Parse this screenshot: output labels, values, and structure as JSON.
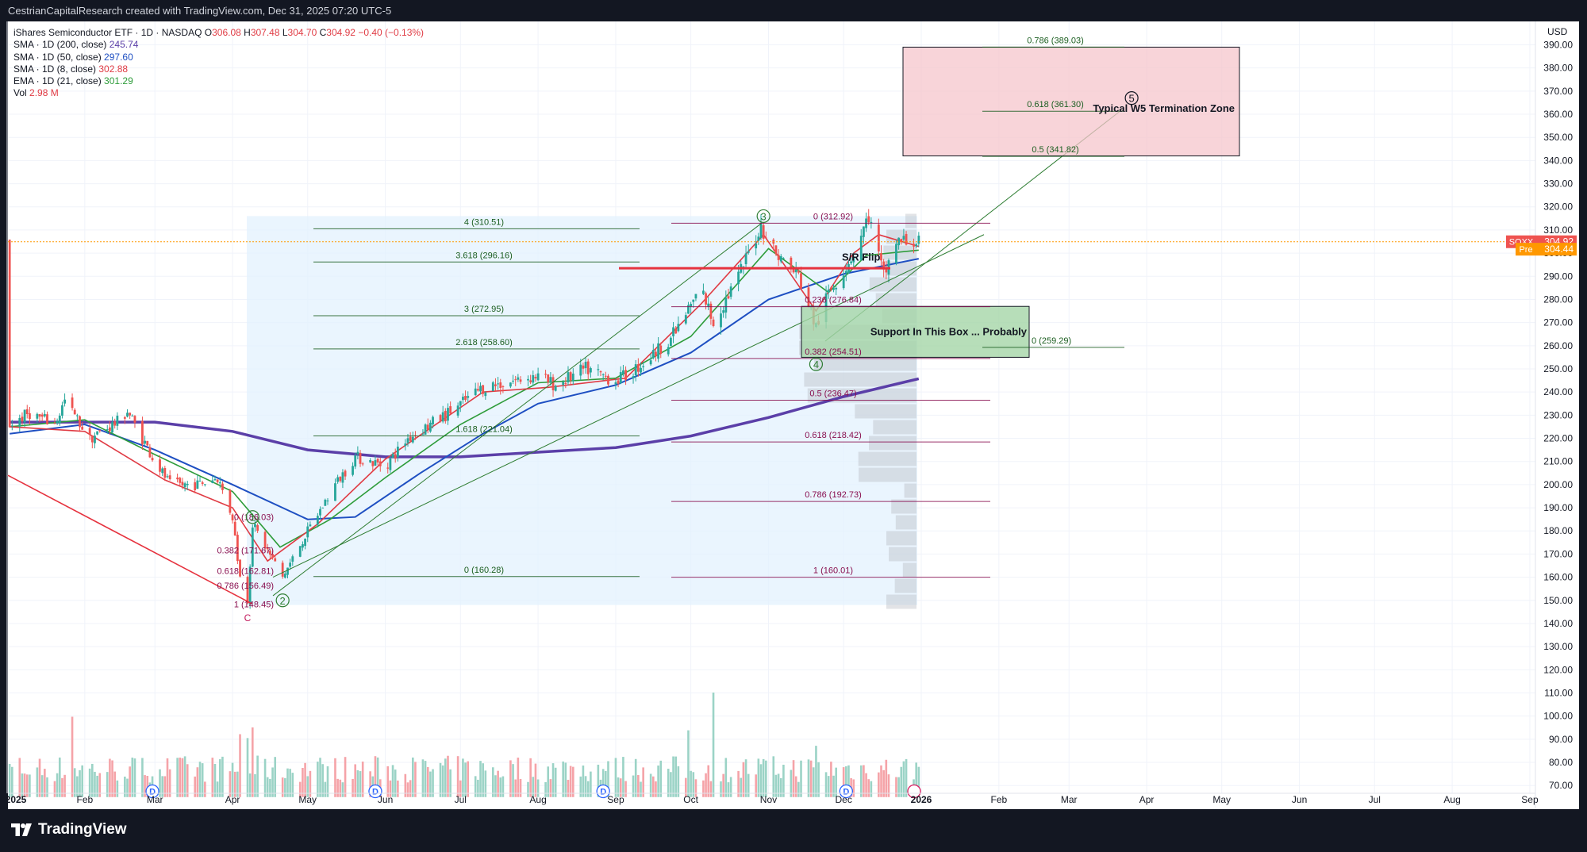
{
  "header": {
    "attribution": "CestrianCapitalResearch created with TradingView.com, Dec 31, 2025 07:20 UTC-5"
  },
  "legend": {
    "title": "iShares Semiconductor ETF · 1D · NASDAQ",
    "ohlc": [
      {
        "key": "O",
        "value": "306.08"
      },
      {
        "key": "H",
        "value": "307.48"
      },
      {
        "key": "L",
        "value": "304.70"
      },
      {
        "key": "C",
        "value": "304.92"
      }
    ],
    "change": "−0.40 (−0.13%)",
    "indicators": [
      {
        "label": "SMA · 1D (200, close)",
        "value": "245.74",
        "color": "#5b3fa8"
      },
      {
        "label": "SMA · 1D (50, close)",
        "value": "297.60",
        "color": "#1e4fc2"
      },
      {
        "label": "SMA · 1D (8, close)",
        "value": "302.88",
        "color": "#e03b44"
      },
      {
        "label": "EMA · 1D (21, close)",
        "value": "301.29",
        "color": "#2e9c3a"
      },
      {
        "label": "Vol",
        "value": "2.98 M",
        "color": "#e03b44"
      }
    ]
  },
  "brand": {
    "name": "TradingView"
  },
  "chart_data": {
    "type": "candlestick",
    "symbol": "SOXX",
    "currency": "USD",
    "last_price": 304.92,
    "premarket_price": 304.44,
    "price_tag_label": "SOXX",
    "premarket_tag_label": "Pre",
    "y_range": [
      65,
      399
    ],
    "y_ticks": [
      70,
      80,
      90,
      100,
      110,
      120,
      130,
      140,
      150,
      160,
      170,
      180,
      190,
      200,
      210,
      220,
      230,
      240,
      250,
      260,
      270,
      280,
      290,
      300,
      310,
      320,
      330,
      340,
      350,
      360,
      370,
      380,
      390
    ],
    "x_ticks": [
      "2025",
      "Feb",
      "Mar",
      "Apr",
      "May",
      "Jun",
      "Jul",
      "Aug",
      "Sep",
      "Oct",
      "Nov",
      "Dec",
      "2026",
      "Feb",
      "Mar",
      "Apr",
      "May",
      "Jun",
      "Jul",
      "Aug",
      "Sep"
    ],
    "price_path": [
      [
        "2025-01-02",
        226
      ],
      [
        "2025-01-10",
        231
      ],
      [
        "2025-01-20",
        226
      ],
      [
        "2025-01-24",
        236
      ],
      [
        "2025-02-03",
        220
      ],
      [
        "2025-02-14",
        227
      ],
      [
        "2025-02-18",
        232
      ],
      [
        "2025-02-28",
        212
      ],
      [
        "2025-03-07",
        200
      ],
      [
        "2025-03-18",
        200
      ],
      [
        "2025-03-26",
        203
      ],
      [
        "2025-04-01",
        186
      ],
      [
        "2025-04-04",
        160
      ],
      [
        "2025-04-07",
        150
      ],
      [
        "2025-04-09",
        183
      ],
      [
        "2025-04-21",
        160
      ],
      [
        "2025-04-30",
        178
      ],
      [
        "2025-05-12",
        200
      ],
      [
        "2025-05-20",
        212
      ],
      [
        "2025-06-01",
        208
      ],
      [
        "2025-06-10",
        220
      ],
      [
        "2025-06-25",
        230
      ],
      [
        "2025-07-10",
        242
      ],
      [
        "2025-07-31",
        247
      ],
      [
        "2025-08-08",
        243
      ],
      [
        "2025-08-20",
        250
      ],
      [
        "2025-09-01",
        245
      ],
      [
        "2025-09-05",
        247
      ],
      [
        "2025-09-15",
        255
      ],
      [
        "2025-09-25",
        266
      ],
      [
        "2025-10-05",
        285
      ],
      [
        "2025-10-10",
        270
      ],
      [
        "2025-10-20",
        290
      ],
      [
        "2025-10-29",
        312
      ],
      [
        "2025-11-04",
        300
      ],
      [
        "2025-11-13",
        290
      ],
      [
        "2025-11-20",
        268
      ],
      [
        "2025-11-25",
        283
      ],
      [
        "2025-12-01",
        293
      ],
      [
        "2025-12-05",
        300
      ],
      [
        "2025-12-11",
        316
      ],
      [
        "2025-12-17",
        290
      ],
      [
        "2025-12-22",
        305
      ],
      [
        "2025-12-31",
        304.92
      ]
    ],
    "series": [
      {
        "name": "SMA · 1D (200, close)",
        "color": "#5b3fa8",
        "points": [
          [
            "2025-01-02",
            227
          ],
          [
            "2025-02-10",
            227
          ],
          [
            "2025-03-01",
            227
          ],
          [
            "2025-04-01",
            223
          ],
          [
            "2025-05-01",
            215
          ],
          [
            "2025-06-01",
            212
          ],
          [
            "2025-07-01",
            212
          ],
          [
            "2025-08-01",
            214
          ],
          [
            "2025-09-01",
            216
          ],
          [
            "2025-10-01",
            221
          ],
          [
            "2025-11-01",
            229
          ],
          [
            "2025-12-01",
            238
          ],
          [
            "2025-12-31",
            245.74
          ]
        ]
      },
      {
        "name": "SMA · 1D (50, close)",
        "color": "#1e4fc2",
        "points": [
          [
            "2025-01-02",
            222
          ],
          [
            "2025-02-01",
            226
          ],
          [
            "2025-03-01",
            215
          ],
          [
            "2025-04-01",
            200
          ],
          [
            "2025-05-01",
            185
          ],
          [
            "2025-05-20",
            186
          ],
          [
            "2025-06-15",
            205
          ],
          [
            "2025-07-10",
            222
          ],
          [
            "2025-08-01",
            235
          ],
          [
            "2025-09-01",
            243
          ],
          [
            "2025-10-01",
            257
          ],
          [
            "2025-11-01",
            280
          ],
          [
            "2025-12-01",
            291
          ],
          [
            "2025-12-31",
            297.6
          ]
        ]
      },
      {
        "name": "EMA · 1D (21, close)",
        "color": "#2e9c3a",
        "points": [
          [
            "2025-01-02",
            225
          ],
          [
            "2025-02-01",
            228
          ],
          [
            "2025-03-01",
            213
          ],
          [
            "2025-04-01",
            197
          ],
          [
            "2025-04-20",
            173
          ],
          [
            "2025-05-10",
            185
          ],
          [
            "2025-06-01",
            203
          ],
          [
            "2025-07-01",
            226
          ],
          [
            "2025-08-01",
            244
          ],
          [
            "2025-09-01",
            246
          ],
          [
            "2025-10-01",
            264
          ],
          [
            "2025-11-01",
            302
          ],
          [
            "2025-11-25",
            283
          ],
          [
            "2025-12-10",
            299
          ],
          [
            "2025-12-31",
            301.29
          ]
        ]
      },
      {
        "name": "SMA · 1D (8, close)",
        "color": "#e03b44",
        "points": [
          [
            "2025-01-02",
            225
          ],
          [
            "2025-02-01",
            223
          ],
          [
            "2025-03-05",
            202
          ],
          [
            "2025-04-01",
            190
          ],
          [
            "2025-04-15",
            167
          ],
          [
            "2025-05-05",
            183
          ],
          [
            "2025-06-01",
            211
          ],
          [
            "2025-07-10",
            240
          ],
          [
            "2025-08-05",
            242
          ],
          [
            "2025-09-05",
            246
          ],
          [
            "2025-10-05",
            278
          ],
          [
            "2025-10-30",
            308
          ],
          [
            "2025-11-20",
            275
          ],
          [
            "2025-12-05",
            300
          ],
          [
            "2025-12-15",
            308
          ],
          [
            "2025-12-31",
            302.88
          ]
        ]
      }
    ],
    "volume": {
      "axis_max": 11000000,
      "tall_bars": [
        [
          "2025-01-27",
          8.3
        ],
        [
          "2025-04-07",
          6.1
        ],
        [
          "2025-04-09",
          7.2
        ],
        [
          "2025-04-04",
          6.5
        ],
        [
          "2025-10-10",
          10.8
        ],
        [
          "2025-09-30",
          6.9
        ],
        [
          "2025-11-20",
          5.3
        ]
      ]
    },
    "fib_levels": [
      {
        "label": "4 (310.51)",
        "price": 310.51,
        "group": "ext"
      },
      {
        "label": "3.618 (296.16)",
        "price": 296.16,
        "group": "ext"
      },
      {
        "label": "3 (272.95)",
        "price": 272.95,
        "group": "ext"
      },
      {
        "label": "2.618 (258.60)",
        "price": 258.6,
        "group": "ext"
      },
      {
        "label": "1.618 (221.04)",
        "price": 221.04,
        "group": "ext"
      },
      {
        "label": "0 (160.28)",
        "price": 160.28,
        "group": "ext"
      },
      {
        "label": "0 (312.92)",
        "price": 312.92,
        "group": "ret"
      },
      {
        "label": "0.236 (276.84)",
        "price": 276.84,
        "group": "ret"
      },
      {
        "label": "0.382 (254.51)",
        "price": 254.51,
        "group": "ret"
      },
      {
        "label": "0.5 (236.47)",
        "price": 236.47,
        "group": "ret"
      },
      {
        "label": "0.618 (218.42)",
        "price": 218.42,
        "group": "ret"
      },
      {
        "label": "0.786 (192.73)",
        "price": 192.73,
        "group": "ret"
      },
      {
        "label": "1 (160.01)",
        "price": 160.01,
        "group": "ret"
      },
      {
        "label": "0.786 (389.03)",
        "price": 389.03,
        "group": "target"
      },
      {
        "label": "0.618 (361.30)",
        "price": 361.3,
        "group": "target"
      },
      {
        "label": "0.5 (341.82)",
        "price": 341.82,
        "group": "target"
      },
      {
        "label": "0 (259.29)",
        "price": 259.29,
        "group": "target"
      },
      {
        "label": "0 (186.03)",
        "price": 186.03,
        "group": "small"
      },
      {
        "label": "0.382 (171.67)",
        "price": 171.67,
        "group": "small"
      },
      {
        "label": "0.618 (162.81)",
        "price": 162.81,
        "group": "small"
      },
      {
        "label": "0.786 (156.49)",
        "price": 156.49,
        "group": "small"
      },
      {
        "label": "1 (148.45)",
        "price": 148.45,
        "group": "small"
      }
    ],
    "wave_labels": [
      "1",
      "2",
      "3",
      "4",
      "5",
      "C"
    ],
    "annotations": [
      {
        "text": "Typical W5 Termination Zone"
      },
      {
        "text": "Support In This Box ... Probably"
      },
      {
        "text": "S/R Flip"
      }
    ],
    "event_markers": [
      "D",
      "D",
      "D",
      "D"
    ]
  }
}
